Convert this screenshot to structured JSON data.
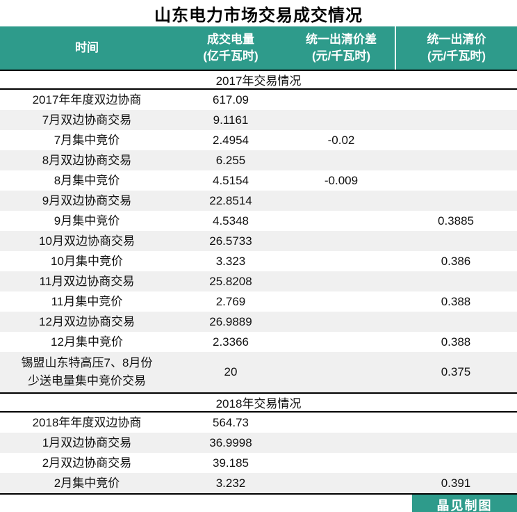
{
  "title": "山东电力市场交易成交情况",
  "colors": {
    "accent": "#2E9B8B",
    "stripe": "#F0F0F0",
    "line": "#000000",
    "header_text": "#FFFFFF"
  },
  "footer": {
    "credit": "晶见制图"
  },
  "chart_data": {
    "type": "table",
    "title": "山东电力市场交易成交情况",
    "columns": [
      {
        "label": "时间",
        "unit": ""
      },
      {
        "label": "成交电量",
        "unit": "(亿千瓦时)"
      },
      {
        "label": "统一出清价差",
        "unit": "(元/千瓦时)"
      },
      {
        "label": "统一出清价",
        "unit": "(元/千瓦时)"
      }
    ],
    "sections": [
      {
        "header": "2017年交易情况",
        "rows": [
          [
            "2017年年度双边协商",
            "617.09",
            "",
            ""
          ],
          [
            "7月双边协商交易",
            "9.1161",
            "",
            ""
          ],
          [
            "7月集中竞价",
            "2.4954",
            "-0.02",
            ""
          ],
          [
            "8月双边协商交易",
            "6.255",
            "",
            ""
          ],
          [
            "8月集中竞价",
            "4.5154",
            "-0.009",
            ""
          ],
          [
            "9月双边协商交易",
            "22.8514",
            "",
            ""
          ],
          [
            "9月集中竞价",
            "4.5348",
            "",
            "0.3885"
          ],
          [
            "10月双边协商交易",
            "26.5733",
            "",
            ""
          ],
          [
            "10月集中竞价",
            "3.323",
            "",
            "0.386"
          ],
          [
            "11月双边协商交易",
            "25.8208",
            "",
            ""
          ],
          [
            "11月集中竞价",
            "2.769",
            "",
            "0.388"
          ],
          [
            "12月双边协商交易",
            "26.9889",
            "",
            ""
          ],
          [
            "12月集中竞价",
            "2.3366",
            "",
            "0.388"
          ],
          [
            "锡盟山东特高压7、8月份\n少送电量集中竞价交易",
            "20",
            "",
            "0.375"
          ]
        ]
      },
      {
        "header": "2018年交易情况",
        "rows": [
          [
            "2018年年度双边协商",
            "564.73",
            "",
            ""
          ],
          [
            "1月双边协商交易",
            "36.9998",
            "",
            ""
          ],
          [
            "2月双边协商交易",
            "39.185",
            "",
            ""
          ],
          [
            "2月集中竞价",
            "3.232",
            "",
            "0.391"
          ]
        ]
      }
    ]
  }
}
